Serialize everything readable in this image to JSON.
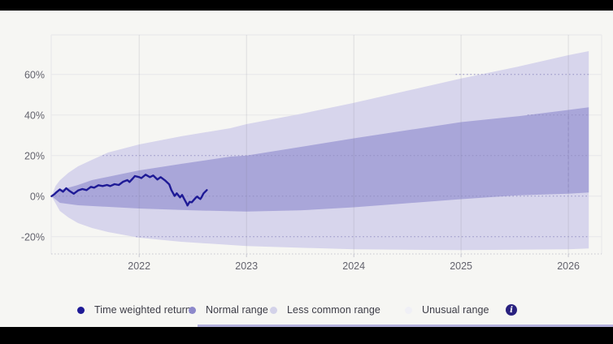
{
  "colors": {
    "frame_bars": "#000000",
    "surface": "#f6f6f3",
    "grid": "#e7e7ea",
    "v_grid": "rgba(110,110,135,0.18)",
    "dotted_overlay": "#928ec2",
    "axis_line": "#c6c6cf",
    "axis_text": "#63636d",
    "legend_text": "#3c3c46",
    "info_bg": "#29217f",
    "bottom_strip": "#b3b0dc"
  },
  "chart_data": {
    "type": "area",
    "title": "",
    "xlabel": "",
    "ylabel": "",
    "xlim": [
      2021.18,
      2026.31
    ],
    "ylim": [
      -28.5,
      79.5
    ],
    "grid": true,
    "legend_position": "bottom",
    "x_tick_values": [
      2022,
      2023,
      2024,
      2025,
      2026
    ],
    "x_tick_labels": [
      "2022",
      "2023",
      "2024",
      "2025",
      "2026"
    ],
    "y_tick_values": [
      60,
      40,
      20,
      0,
      -20
    ],
    "y_tick_labels": [
      "60%",
      "40%",
      "20%",
      "0%",
      "-20%"
    ],
    "series": [
      {
        "name": "Less common range",
        "kind": "band",
        "color": "#d7d5ec",
        "upper": [
          [
            2021.183,
            0
          ],
          [
            2021.22,
            5
          ],
          [
            2021.26,
            7.8
          ],
          [
            2021.34,
            11.5
          ],
          [
            2021.43,
            14.7
          ],
          [
            2021.56,
            17.9
          ],
          [
            2021.71,
            21.5
          ],
          [
            2022,
            25.5
          ],
          [
            2022.39,
            29.5
          ],
          [
            2022.85,
            33.5
          ],
          [
            2023,
            35.5
          ],
          [
            2023.5,
            40.5
          ],
          [
            2024,
            46
          ],
          [
            2024.5,
            52
          ],
          [
            2025,
            58
          ],
          [
            2025.5,
            63.5
          ],
          [
            2026,
            69.5
          ],
          [
            2026.19,
            71.5
          ]
        ],
        "lower": [
          [
            2021.183,
            0
          ],
          [
            2021.26,
            -7.3
          ],
          [
            2021.34,
            -10.5
          ],
          [
            2021.43,
            -13.3
          ],
          [
            2021.56,
            -15.7
          ],
          [
            2021.71,
            -17.7
          ],
          [
            2022,
            -20.5
          ],
          [
            2022.39,
            -22.5
          ],
          [
            2023,
            -24.6
          ],
          [
            2024,
            -26.2
          ],
          [
            2025,
            -26.6
          ],
          [
            2026,
            -26.2
          ],
          [
            2026.19,
            -25.8
          ]
        ]
      },
      {
        "name": "Normal range",
        "kind": "band",
        "color": "#a9a6d9",
        "upper": [
          [
            2021.183,
            0
          ],
          [
            2021.26,
            3
          ],
          [
            2021.43,
            5.5
          ],
          [
            2021.56,
            7.9
          ],
          [
            2022,
            12.7
          ],
          [
            2022.39,
            15.9
          ],
          [
            2022.85,
            19.5
          ],
          [
            2023,
            20
          ],
          [
            2024,
            28.5
          ],
          [
            2025,
            36.5
          ],
          [
            2025.55,
            39.5
          ],
          [
            2026,
            42.5
          ],
          [
            2026.19,
            43.8
          ]
        ],
        "lower": [
          [
            2021.183,
            0
          ],
          [
            2021.26,
            -3.3
          ],
          [
            2021.43,
            -4.5
          ],
          [
            2022,
            -6.1
          ],
          [
            2022.5,
            -7
          ],
          [
            2023,
            -7.6
          ],
          [
            2023.5,
            -7
          ],
          [
            2024,
            -5.5
          ],
          [
            2024.5,
            -3.5
          ],
          [
            2025,
            -1.5
          ],
          [
            2025.5,
            0.3
          ],
          [
            2026,
            1.2
          ],
          [
            2026.19,
            1.8
          ]
        ]
      },
      {
        "name": "Time weighted return",
        "kind": "line",
        "color": "#1e1a96",
        "points": [
          [
            2021.183,
            0
          ],
          [
            2021.21,
            1
          ],
          [
            2021.23,
            2
          ],
          [
            2021.26,
            3.3
          ],
          [
            2021.29,
            2.2
          ],
          [
            2021.32,
            3.9
          ],
          [
            2021.35,
            2.6
          ],
          [
            2021.39,
            1.2
          ],
          [
            2021.43,
            2.8
          ],
          [
            2021.47,
            3.5
          ],
          [
            2021.51,
            3
          ],
          [
            2021.55,
            4.6
          ],
          [
            2021.58,
            4.2
          ],
          [
            2021.62,
            5.4
          ],
          [
            2021.66,
            5
          ],
          [
            2021.7,
            5.5
          ],
          [
            2021.73,
            5
          ],
          [
            2021.77,
            5.9
          ],
          [
            2021.81,
            5.5
          ],
          [
            2021.85,
            7.1
          ],
          [
            2021.89,
            7.9
          ],
          [
            2021.91,
            7
          ],
          [
            2021.94,
            8.7
          ],
          [
            2021.96,
            9.9
          ],
          [
            2022,
            9.4
          ],
          [
            2022.02,
            8.9
          ],
          [
            2022.06,
            10.6
          ],
          [
            2022.1,
            9.4
          ],
          [
            2022.13,
            10.2
          ],
          [
            2022.17,
            8.2
          ],
          [
            2022.2,
            9.4
          ],
          [
            2022.24,
            7.8
          ],
          [
            2022.28,
            5.8
          ],
          [
            2022.3,
            3
          ],
          [
            2022.33,
            0.1
          ],
          [
            2022.35,
            1.4
          ],
          [
            2022.38,
            -0.6
          ],
          [
            2022.4,
            0.6
          ],
          [
            2022.42,
            -1.4
          ],
          [
            2022.44,
            -3.4
          ],
          [
            2022.45,
            -4.6
          ],
          [
            2022.47,
            -2.8
          ],
          [
            2022.49,
            -3
          ],
          [
            2022.51,
            -1.8
          ],
          [
            2022.53,
            -0.6
          ],
          [
            2022.54,
            -0.2
          ],
          [
            2022.55,
            -0.7
          ],
          [
            2022.57,
            -1.4
          ],
          [
            2022.58,
            -0.6
          ],
          [
            2022.6,
            1.4
          ],
          [
            2022.63,
            3
          ]
        ]
      }
    ],
    "annotations": {
      "dotted_gridlines_over_fan": [
        {
          "y": 60,
          "x_from": 2024.95,
          "x_to": 2026.19
        },
        {
          "y": 40,
          "x_from": 2025.62,
          "x_to": 2026.19
        },
        {
          "y": 20,
          "x_from": 2021.66,
          "x_to": 2026.19
        },
        {
          "y": 0,
          "x_from": 2021.183,
          "x_to": 2026.19
        },
        {
          "y": -20,
          "x_from": 2021.97,
          "x_to": 2026.19
        }
      ],
      "dashed_vertical": {
        "x": 2026.0,
        "y_from": 39.5,
        "y_to": 1.9
      }
    }
  },
  "legend": {
    "items": [
      {
        "label": "Time weighted return",
        "color": "#1e1a96"
      },
      {
        "label": "Normal range",
        "color": "#8d89cb"
      },
      {
        "label": "Less common range",
        "color": "#d3d2e9"
      },
      {
        "label": "Unusual range",
        "color": "#f0f0f6"
      }
    ],
    "info_icon_glyph": "i"
  }
}
